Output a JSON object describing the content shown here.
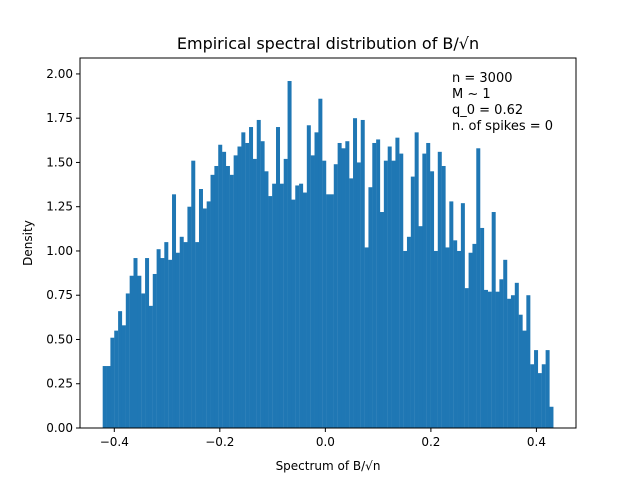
{
  "chart_data": {
    "type": "bar",
    "title": "Empirical spectral distribution of B/√n",
    "xlabel": "Spectrum of B/√n",
    "ylabel": "Density",
    "xlim": [
      -0.465,
      0.475
    ],
    "ylim": [
      0.0,
      2.09
    ],
    "bin_range": [
      -0.422,
      0.432
    ],
    "bar_color": "#1f77b4",
    "grid": false,
    "x_ticks": [
      -0.4,
      -0.2,
      0.0,
      0.2,
      0.4
    ],
    "x_tick_labels": [
      "−0.4",
      "−0.2",
      "0.0",
      "0.2",
      "0.4"
    ],
    "y_ticks": [
      0.0,
      0.25,
      0.5,
      0.75,
      1.0,
      1.25,
      1.5,
      1.75,
      2.0
    ],
    "y_tick_labels": [
      "0.00",
      "0.25",
      "0.50",
      "0.75",
      "1.00",
      "1.25",
      "1.50",
      "1.75",
      "2.00"
    ],
    "annotation": [
      "n = 3000",
      "M ~ 1",
      "q_0 = 0.62",
      "n. of spikes = 0"
    ],
    "annotation_placement": "top-right",
    "values": [
      0.35,
      0.35,
      0.51,
      0.55,
      0.66,
      0.58,
      0.76,
      0.86,
      0.96,
      0.86,
      0.76,
      0.96,
      0.69,
      0.87,
      1.01,
      0.96,
      1.05,
      0.95,
      1.32,
      0.99,
      1.08,
      1.05,
      1.25,
      1.51,
      1.05,
      1.35,
      1.24,
      1.28,
      1.43,
      1.48,
      1.6,
      1.56,
      1.48,
      1.43,
      1.54,
      1.59,
      1.67,
      1.61,
      1.7,
      1.52,
      1.74,
      1.62,
      1.45,
      1.31,
      1.38,
      1.7,
      1.38,
      1.52,
      1.96,
      1.29,
      1.37,
      1.38,
      1.33,
      1.71,
      1.54,
      1.67,
      1.86,
      1.51,
      1.32,
      1.32,
      1.49,
      1.61,
      1.58,
      1.62,
      1.41,
      1.75,
      1.5,
      1.74,
      1.02,
      1.36,
      1.61,
      1.63,
      1.22,
      1.51,
      1.59,
      1.51,
      1.64,
      1.55,
      1.0,
      1.08,
      1.42,
      1.67,
      1.14,
      1.55,
      1.61,
      1.45,
      1.0,
      1.56,
      1.48,
      1.02,
      1.28,
      1.06,
      1.0,
      1.27,
      0.79,
      0.99,
      1.04,
      1.58,
      1.13,
      0.78,
      0.77,
      1.22,
      0.77,
      0.84,
      0.95,
      0.73,
      0.75,
      0.82,
      0.64,
      0.55,
      0.75,
      0.36,
      0.44,
      0.31,
      0.36,
      0.44,
      0.12
    ]
  }
}
